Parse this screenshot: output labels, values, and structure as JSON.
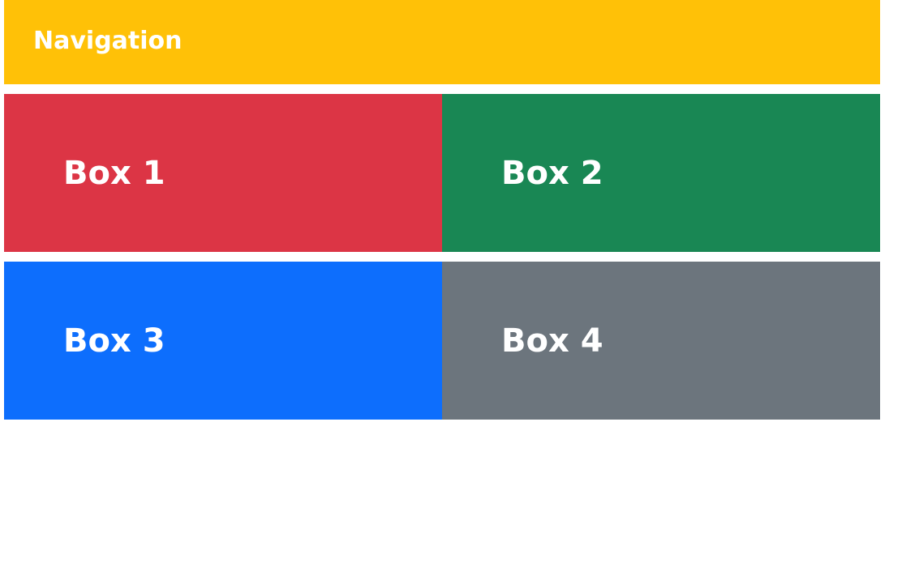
{
  "navigation": {
    "title": "Navigation",
    "color": "#ffc107"
  },
  "boxes": [
    {
      "label": "Box 1",
      "color": "#dc3545"
    },
    {
      "label": "Box 2",
      "color": "#198754"
    },
    {
      "label": "Box 3",
      "color": "#0d6efd"
    },
    {
      "label": "Box 4",
      "color": "#6c757d"
    }
  ]
}
